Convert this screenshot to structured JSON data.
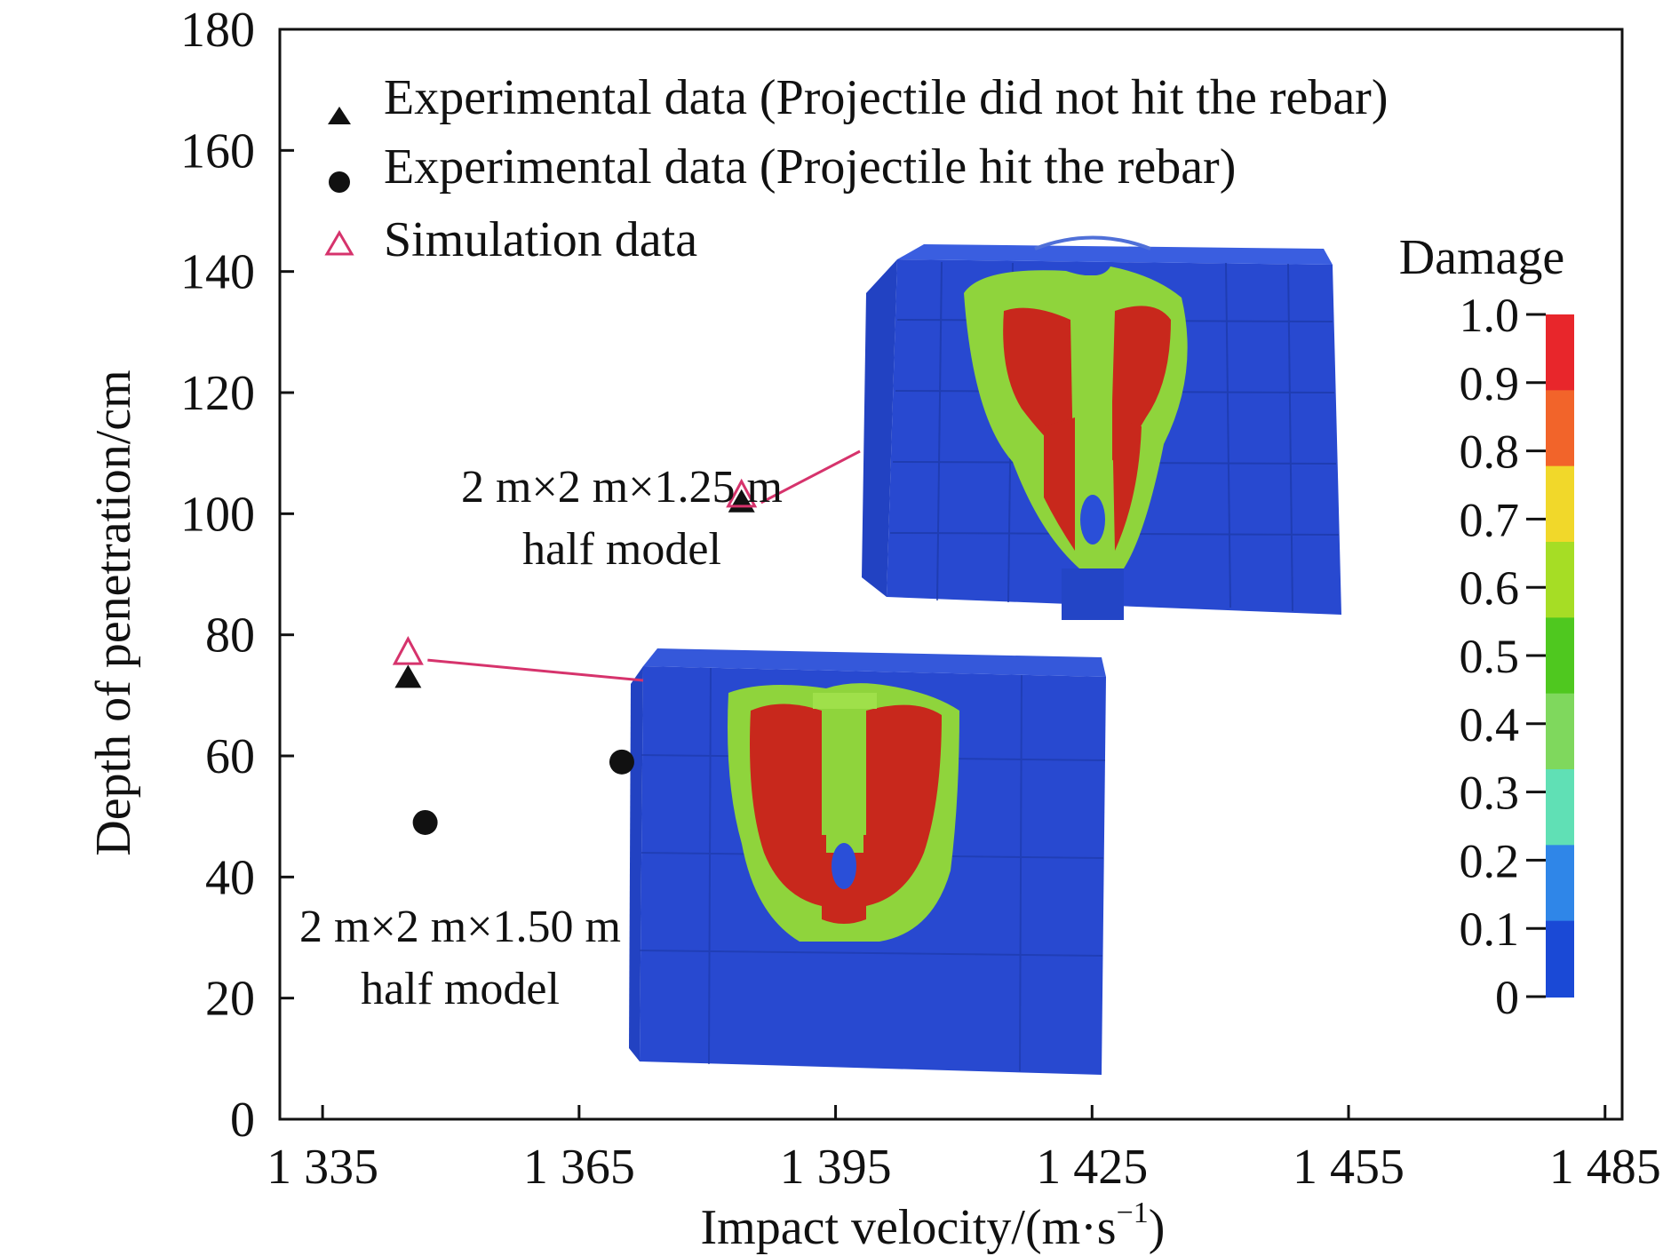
{
  "chart_data": {
    "type": "scatter",
    "title": "",
    "xlabel": "Impact velocity/(m·s",
    "xlabel_sup": "−1",
    "xlabel_tail": ")",
    "ylabel": "Depth of penetration/cm",
    "xlim": [
      1330,
      1487
    ],
    "ylim": [
      0,
      180
    ],
    "x_ticks": [
      1335,
      1365,
      1395,
      1425,
      1455,
      1485
    ],
    "x_tick_labels": [
      "1 335",
      "1 365",
      "1 395",
      "1 425",
      "1 455",
      "1 485"
    ],
    "y_ticks": [
      0,
      20,
      40,
      60,
      80,
      100,
      120,
      140,
      160,
      180
    ],
    "y_tick_labels": [
      "0",
      "20",
      "40",
      "60",
      "80",
      "100",
      "120",
      "140",
      "160",
      "180"
    ],
    "grid": false,
    "legend_position": "top-left",
    "series": [
      {
        "name": "Experimental data (Projectile did not hit the rebar)",
        "marker": "filled-triangle",
        "color": "#111111",
        "points": [
          [
            1345,
            73
          ],
          [
            1384,
            102
          ]
        ]
      },
      {
        "name": "Experimental data (Projectile hit the rebar)",
        "marker": "filled-circle",
        "color": "#111111",
        "points": [
          [
            1347,
            49
          ],
          [
            1370,
            59
          ]
        ]
      },
      {
        "name": "Simulation data",
        "marker": "open-triangle",
        "color": "#d6336c",
        "points": [
          [
            1345,
            77
          ],
          [
            1384,
            103
          ]
        ]
      }
    ],
    "annotations": [
      {
        "lines": [
          "2 m×2 m×1.25 m",
          "half model"
        ],
        "target": [
          1384,
          103
        ]
      },
      {
        "lines": [
          "2 m×2 m×1.50 m",
          "half model"
        ],
        "target": [
          1345,
          77
        ]
      }
    ],
    "colorbar": {
      "title": "Damage",
      "tick_labels": [
        "1.0",
        "0.9",
        "0.8",
        "0.7",
        "0.6",
        "0.5",
        "0.4",
        "0.3",
        "0.2",
        "0.1",
        "0"
      ],
      "colors_top_to_bottom": [
        "#e8262b",
        "#f2642a",
        "#f1d82a",
        "#a6dd25",
        "#4fc81f",
        "#7fd85d",
        "#60e0b5",
        "#2f86e8",
        "#1a49d6"
      ]
    },
    "inset_images": [
      {
        "name": "damage-model-1.25m",
        "colors": {
          "body": "#2a4fd8",
          "damage": "#c8281c",
          "partial": "#8fd43c"
        }
      },
      {
        "name": "damage-model-1.50m",
        "colors": {
          "body": "#2a4fd8",
          "damage": "#c8281c",
          "partial": "#8fd43c"
        }
      }
    ]
  }
}
